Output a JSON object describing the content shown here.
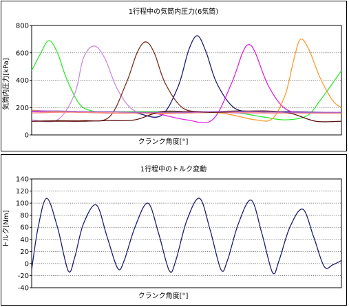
{
  "chart_data": [
    {
      "type": "line",
      "title": "1行程中の気筒内圧力(6気筒)",
      "xlabel": "クランク角度[°]",
      "ylabel": "気筒内圧力[kPa]",
      "ylim": [
        0,
        800
      ],
      "yticks": [
        0,
        200,
        400,
        600,
        800
      ],
      "xlim": [
        0,
        720
      ],
      "grid": true,
      "series": [
        {
          "color": "#2ee82e",
          "peak_x": 40,
          "peak_y": 690,
          "x": [
            0,
            20,
            40,
            60,
            80,
            110,
            140,
            180,
            240,
            300,
            360,
            420,
            480,
            540,
            590,
            640,
            670,
            700,
            720
          ],
          "values": [
            470,
            590,
            690,
            600,
            420,
            230,
            175,
            170,
            170,
            170,
            170,
            165,
            160,
            130,
            110,
            140,
            250,
            380,
            470
          ]
        },
        {
          "color": "#cc88dd",
          "peak_x": 145,
          "peak_y": 650,
          "x": [
            0,
            60,
            100,
            120,
            145,
            170,
            200,
            240,
            300,
            360,
            420,
            480,
            540,
            600,
            660,
            720
          ],
          "values": [
            110,
            110,
            300,
            560,
            650,
            560,
            330,
            175,
            165,
            165,
            165,
            160,
            160,
            160,
            160,
            160
          ]
        },
        {
          "color": "#7b2f1d",
          "peak_x": 265,
          "peak_y": 680,
          "x": [
            0,
            60,
            120,
            180,
            220,
            245,
            265,
            285,
            310,
            350,
            400,
            480,
            560,
            640,
            720
          ],
          "values": [
            100,
            105,
            105,
            130,
            380,
            600,
            680,
            600,
            380,
            200,
            170,
            175,
            170,
            160,
            160
          ]
        },
        {
          "color": "#1c1c6e",
          "peak_x": 385,
          "peak_y": 725,
          "x": [
            0,
            60,
            120,
            180,
            240,
            300,
            340,
            365,
            385,
            405,
            430,
            470,
            520,
            600,
            680,
            720
          ],
          "values": [
            175,
            170,
            165,
            160,
            160,
            140,
            350,
            620,
            725,
            610,
            380,
            200,
            170,
            170,
            165,
            160
          ]
        },
        {
          "color": "#e020e0",
          "peak_x": 505,
          "peak_y": 660,
          "x": [
            0,
            60,
            120,
            200,
            280,
            360,
            420,
            465,
            490,
            505,
            520,
            550,
            590,
            640,
            720
          ],
          "values": [
            170,
            170,
            165,
            160,
            160,
            110,
            110,
            380,
            600,
            660,
            600,
            360,
            190,
            165,
            165
          ]
        },
        {
          "color": "#ff9a2a",
          "peak_x": 625,
          "peak_y": 700,
          "x": [
            0,
            60,
            120,
            200,
            280,
            360,
            440,
            520,
            560,
            590,
            610,
            625,
            645,
            670,
            700,
            720
          ],
          "values": [
            180,
            170,
            165,
            160,
            160,
            160,
            160,
            110,
            120,
            300,
            560,
            700,
            620,
            420,
            250,
            200
          ]
        },
        {
          "color": "#ff8888",
          "x": [
            0,
            60,
            120,
            180,
            240,
            300,
            360,
            420,
            480,
            540,
            600,
            660,
            720
          ],
          "values": [
            160,
            165,
            165,
            160,
            160,
            155,
            160,
            165,
            165,
            160,
            160,
            160,
            160
          ]
        },
        {
          "color": "#5a0f0f",
          "x": [
            0,
            60,
            120,
            180,
            240,
            300,
            360,
            420,
            480,
            540,
            600,
            660,
            720
          ],
          "values": [
            100,
            100,
            100,
            105,
            110,
            170,
            170,
            165,
            170,
            175,
            160,
            100,
            100
          ]
        },
        {
          "color": "#a060c8",
          "x": [
            0,
            60,
            120,
            180,
            240,
            300,
            360,
            420,
            480,
            540,
            600,
            660,
            720
          ],
          "values": [
            175,
            175,
            170,
            170,
            165,
            165,
            165,
            170,
            170,
            170,
            165,
            165,
            165
          ]
        }
      ]
    },
    {
      "type": "line",
      "title": "1行程中のトルク変動",
      "xlabel": "クランク角度[°]",
      "ylabel": "トルク[Nm]",
      "ylim": [
        -40,
        140
      ],
      "yticks": [
        -40,
        -20,
        0,
        20,
        40,
        60,
        80,
        100,
        120,
        140
      ],
      "xlim": [
        0,
        720
      ],
      "grid": true,
      "series": [
        {
          "color": "#1c1c6e",
          "x": [
            0,
            15,
            35,
            60,
            85,
            100,
            120,
            150,
            175,
            200,
            215,
            240,
            270,
            295,
            320,
            335,
            360,
            390,
            415,
            440,
            455,
            480,
            510,
            535,
            560,
            575,
            600,
            630,
            655,
            680,
            700,
            720
          ],
          "values": [
            -10,
            60,
            108,
            60,
            -12,
            10,
            65,
            97,
            45,
            -8,
            5,
            60,
            100,
            50,
            -12,
            5,
            70,
            108,
            55,
            -10,
            5,
            65,
            105,
            50,
            -15,
            5,
            60,
            90,
            45,
            -5,
            -2,
            5
          ]
        }
      ]
    }
  ]
}
